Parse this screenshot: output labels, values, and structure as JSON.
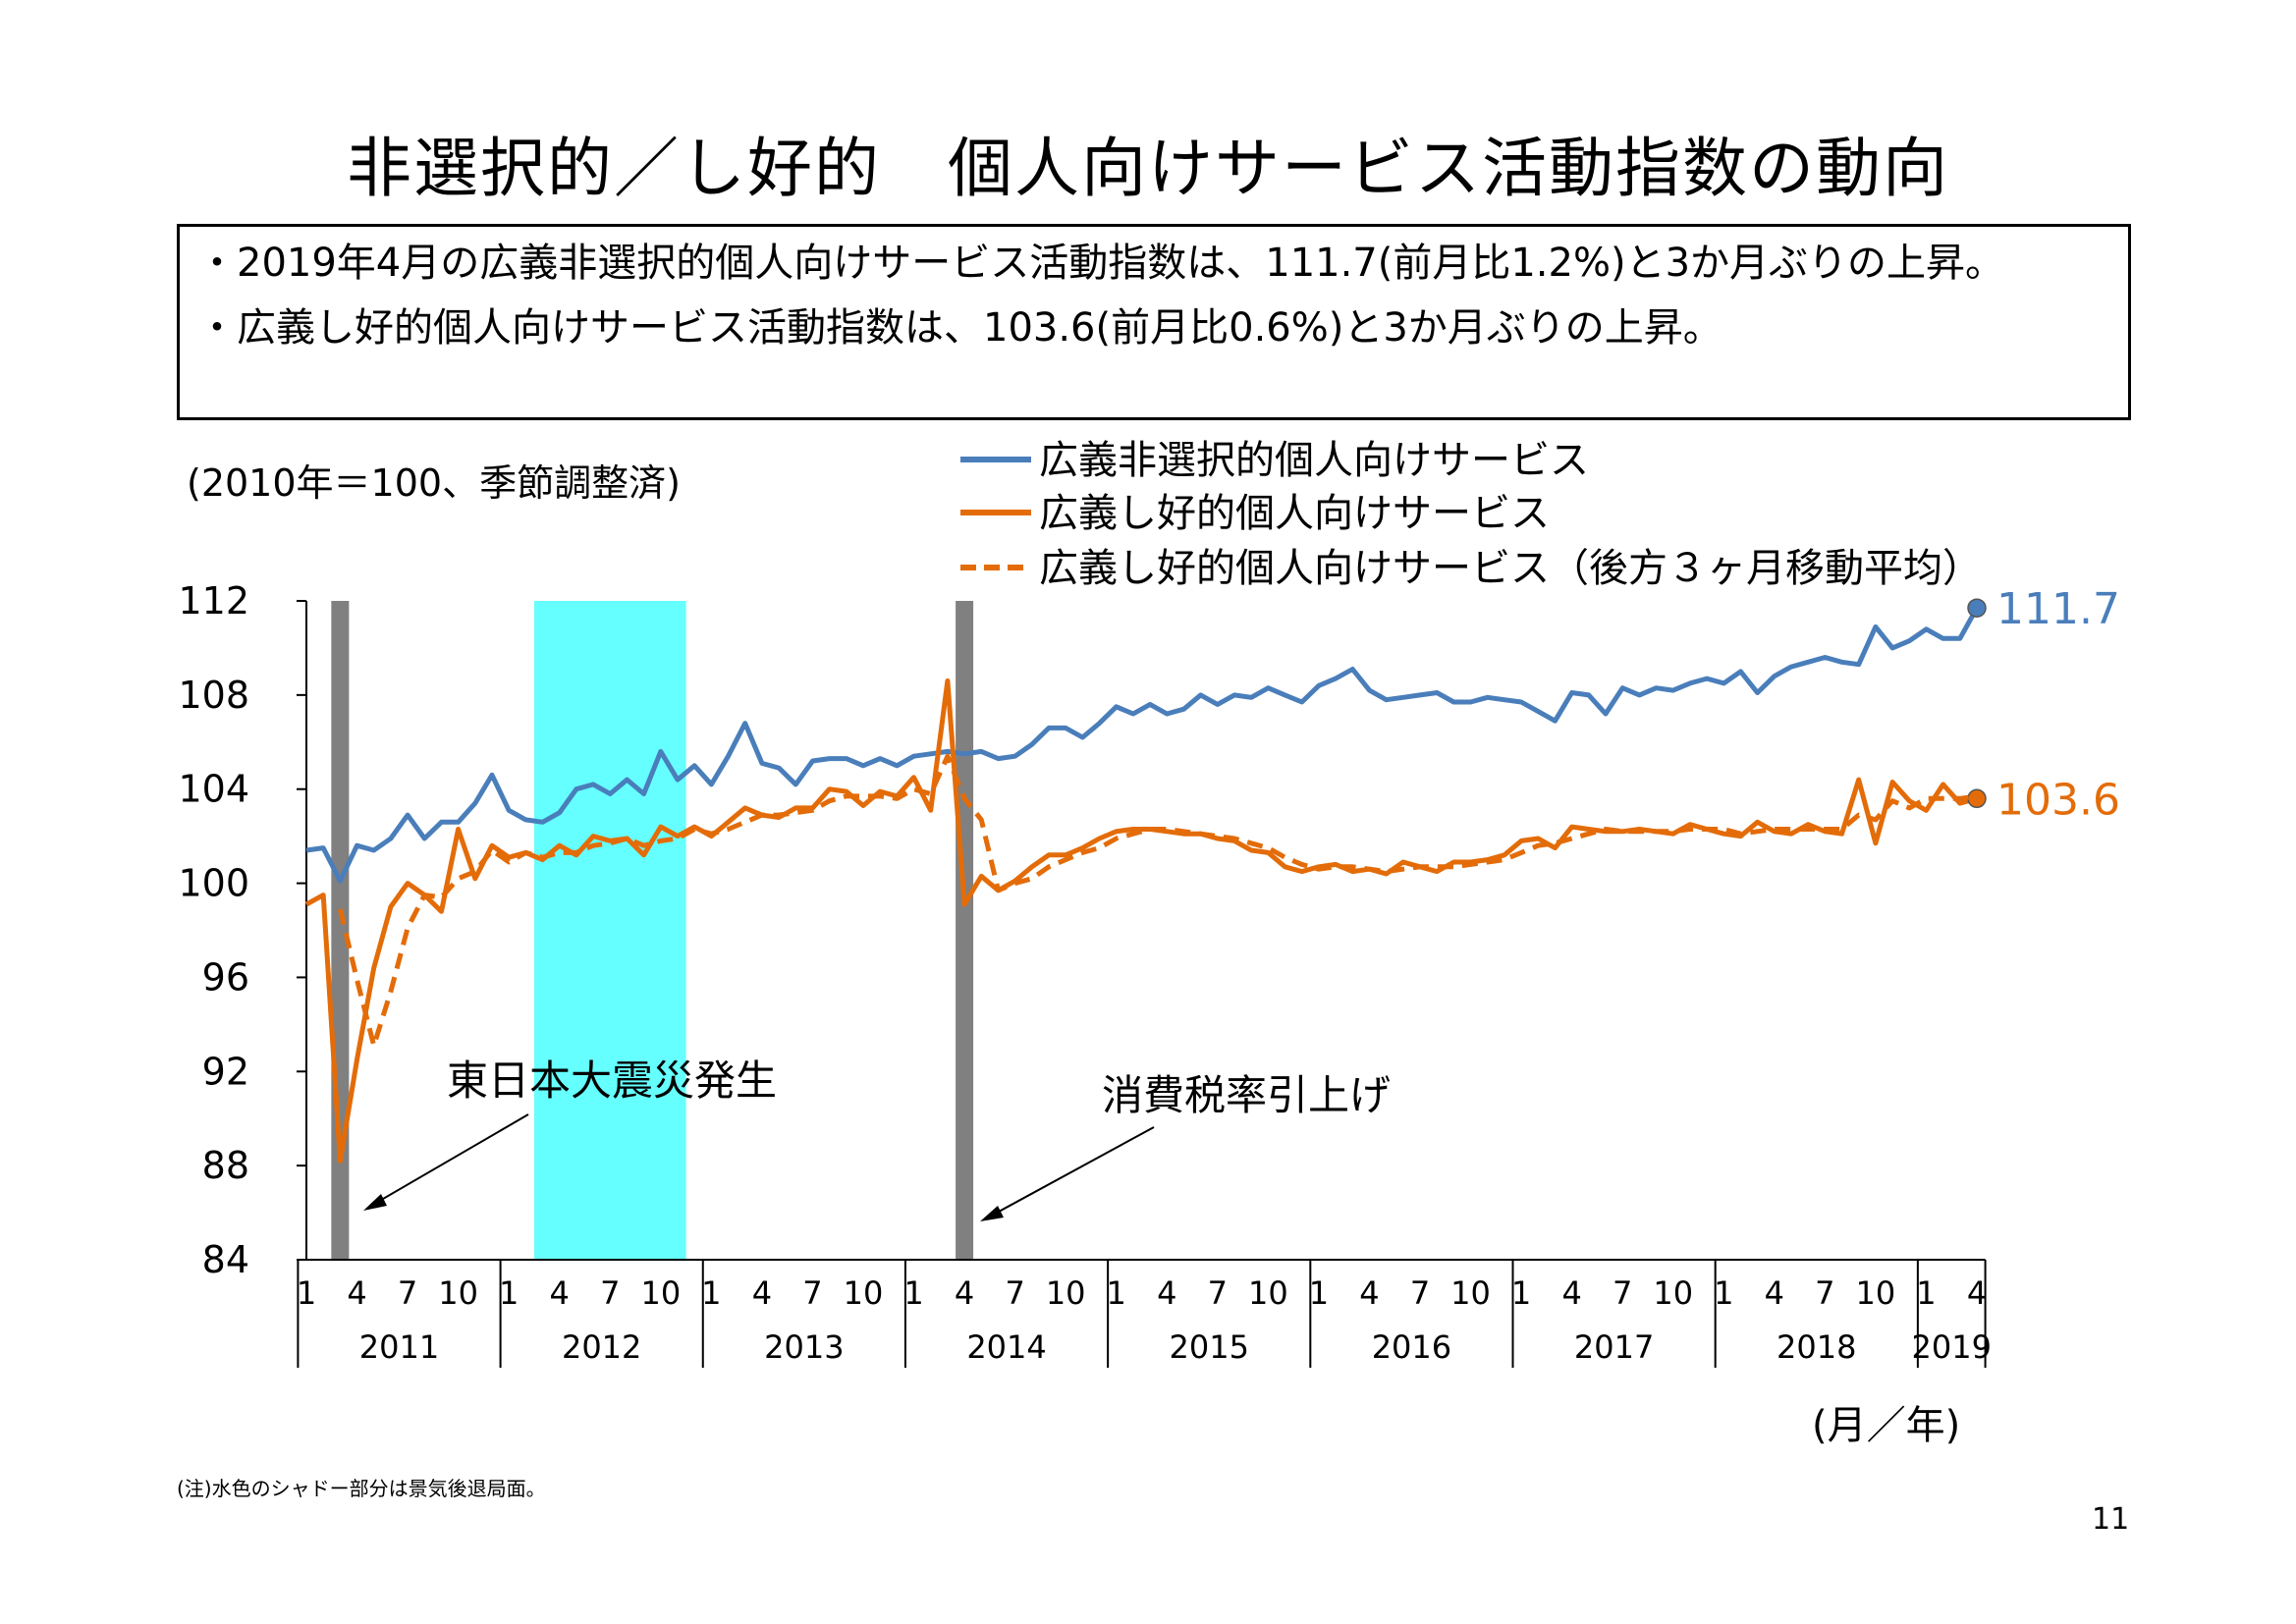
{
  "title": "非選択的／し好的　個人向けサービス活動指数の動向",
  "summary": [
    "・2019年4月の広義非選択的個人向けサービス活動指数は、111.7(前月比1.2%)と3か月ぶりの上昇。",
    "・広義し好的個人向けサービス活動指数は、103.6(前月比0.6%)と3か月ぶりの上昇。"
  ],
  "unit_note": "(2010年＝100、季節調整済)",
  "x_axis_unit": "(月／年)",
  "footnote": "(注)水色のシャドー部分は景気後退局面。",
  "page_number": "11",
  "annotations": {
    "earthquake": "東日本大震災発生",
    "tax": "消費税率引上げ"
  },
  "colors": {
    "blue": "#4a7ebb",
    "orange": "#e36c09",
    "recession": "#66ffff",
    "event_bar": "#808080"
  },
  "chart_data": {
    "type": "line",
    "title": "",
    "ylim": [
      84,
      112
    ],
    "yticks": [
      84,
      88,
      92,
      96,
      100,
      104,
      108,
      112
    ],
    "x_start": "2011-01",
    "x_end": "2019-04",
    "month_tick_labels": [
      "1",
      "4",
      "7",
      "10"
    ],
    "years": [
      "2011",
      "2012",
      "2013",
      "2014",
      "2015",
      "2016",
      "2017",
      "2018",
      "2019"
    ],
    "recession_shading": [
      "2012-03",
      "2012-11"
    ],
    "event_markers": [
      "2011-03",
      "2014-04"
    ],
    "series": [
      {
        "name": "広義非選択的個人向けサービス",
        "style": "solid",
        "color": "blue",
        "end_label": "111.7",
        "values": [
          101.4,
          101.5,
          100.1,
          101.6,
          101.4,
          101.9,
          102.9,
          101.9,
          102.6,
          102.6,
          103.4,
          104.6,
          103.1,
          102.7,
          102.6,
          103.0,
          104.0,
          104.2,
          103.8,
          104.4,
          103.8,
          105.6,
          104.4,
          105.0,
          104.2,
          105.4,
          106.8,
          105.1,
          104.9,
          104.2,
          105.2,
          105.3,
          105.3,
          105.0,
          105.3,
          105.0,
          105.4,
          105.5,
          105.6,
          105.5,
          105.6,
          105.3,
          105.4,
          105.9,
          106.6,
          106.6,
          106.2,
          106.8,
          107.5,
          107.2,
          107.6,
          107.2,
          107.4,
          108.0,
          107.6,
          108.0,
          107.9,
          108.3,
          108.0,
          107.7,
          108.4,
          108.7,
          109.1,
          108.2,
          107.8,
          107.9,
          108.0,
          108.1,
          107.7,
          107.7,
          107.9,
          107.8,
          107.7,
          107.3,
          106.9,
          108.1,
          108.0,
          107.2,
          108.3,
          108.0,
          108.3,
          108.2,
          108.5,
          108.7,
          108.5,
          109.0,
          108.1,
          108.8,
          109.2,
          109.4,
          109.6,
          109.4,
          109.3,
          110.9,
          110.0,
          110.3,
          110.8,
          110.4,
          110.4,
          111.7
        ]
      },
      {
        "name": "広義し好的個人向けサービス",
        "style": "solid",
        "color": "orange",
        "end_label": "103.6",
        "values": [
          99.1,
          99.5,
          88.2,
          92.5,
          96.4,
          99.0,
          100.0,
          99.5,
          98.8,
          102.3,
          100.2,
          101.6,
          101.1,
          101.3,
          101.0,
          101.6,
          101.2,
          102.0,
          101.8,
          101.9,
          101.2,
          102.4,
          102.0,
          102.4,
          102.0,
          102.6,
          103.2,
          102.9,
          102.8,
          103.2,
          103.2,
          104.0,
          103.9,
          103.3,
          103.9,
          103.7,
          104.5,
          103.1,
          108.6,
          99.1,
          100.3,
          99.7,
          100.1,
          100.7,
          101.2,
          101.2,
          101.5,
          101.9,
          102.2,
          102.3,
          102.3,
          102.2,
          102.1,
          102.1,
          101.9,
          101.8,
          101.4,
          101.3,
          100.7,
          100.5,
          100.7,
          100.8,
          100.5,
          100.6,
          100.4,
          100.9,
          100.7,
          100.5,
          100.9,
          100.9,
          101.0,
          101.2,
          101.8,
          101.9,
          101.5,
          102.4,
          102.3,
          102.2,
          102.2,
          102.3,
          102.2,
          102.1,
          102.5,
          102.3,
          102.1,
          102.0,
          102.6,
          102.2,
          102.1,
          102.5,
          102.2,
          102.1,
          104.4,
          101.7,
          104.3,
          103.5,
          103.1,
          104.2,
          103.4,
          103.6
        ]
      },
      {
        "name": "広義し好的個人向けサービス（後方３ヶ月移動平均）",
        "style": "dashed",
        "color": "orange",
        "end_label": "",
        "values": [
          null,
          null,
          98.9,
          95.9,
          93.1,
          95.4,
          98.1,
          99.5,
          99.4,
          100.2,
          100.5,
          101.4,
          100.9,
          101.3,
          101.1,
          101.3,
          101.3,
          101.6,
          101.7,
          101.9,
          101.6,
          101.8,
          101.9,
          102.3,
          102.1,
          102.3,
          102.6,
          102.9,
          102.9,
          103.0,
          103.1,
          103.5,
          103.7,
          103.7,
          103.7,
          103.6,
          104.0,
          103.8,
          105.4,
          103.6,
          102.7,
          99.7,
          100.0,
          100.2,
          100.7,
          101.0,
          101.3,
          101.5,
          101.9,
          102.1,
          102.3,
          102.3,
          102.2,
          102.1,
          102.0,
          101.9,
          101.7,
          101.5,
          101.1,
          100.8,
          100.6,
          100.7,
          100.7,
          100.6,
          100.5,
          100.6,
          100.7,
          100.7,
          100.7,
          100.8,
          100.9,
          101.0,
          101.3,
          101.6,
          101.7,
          101.9,
          102.1,
          102.3,
          102.2,
          102.2,
          102.2,
          102.2,
          102.3,
          102.3,
          102.3,
          102.1,
          102.2,
          102.3,
          102.3,
          102.3,
          102.3,
          102.3,
          102.9,
          102.7,
          103.5,
          103.2,
          103.6,
          103.6,
          103.6,
          103.7
        ]
      }
    ]
  }
}
